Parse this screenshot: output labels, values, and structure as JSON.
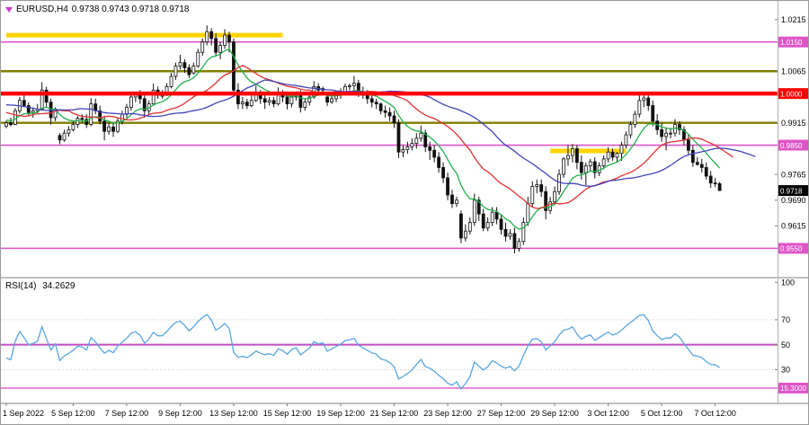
{
  "header": {
    "symbol": "EURUSD,H4",
    "ohlc": "0.9738 0.9743 0.9718 0.9718",
    "marker_color": "#c63bc6"
  },
  "rsi_header": {
    "label": "RSI(14)",
    "value": "34.2629"
  },
  "chart_data": {
    "type": "candlestick",
    "symbol": "EURUSD",
    "timeframe": "H4",
    "colors": {
      "background": "#ffffff",
      "candle_up": "#ffffff",
      "candle_down": "#111111",
      "candle_outline": "#111111",
      "frame": "#808080"
    },
    "price_axis": {
      "range_min": 0.947,
      "range_max": 1.0259,
      "ticks": [
        "1.0215",
        "1.0140",
        "1.0065",
        "0.9990",
        "0.9915",
        "0.9840",
        "0.9765",
        "0.9690",
        "0.9615",
        "0.9540"
      ]
    },
    "current_price": {
      "value": 0.9718,
      "label": "0.9718",
      "color": "#000000"
    },
    "hlines": [
      {
        "price": 1.015,
        "color": "#df55c8",
        "width": 1.6,
        "label": "1.0150",
        "badge": true
      },
      {
        "price": 1.0065,
        "color": "#7f7f00",
        "width": 2.4,
        "badge": false
      },
      {
        "price": 1.0,
        "color": "#ff0000",
        "width": 4.5,
        "label": "1.0000",
        "badge": true,
        "on_top": true
      },
      {
        "price": 0.9915,
        "color": "#7f7f00",
        "width": 2.4,
        "badge": false
      },
      {
        "price": 0.985,
        "color": "#df55c8",
        "width": 1.6,
        "label": "0.9850",
        "badge": true
      },
      {
        "price": 0.955,
        "color": "#df55c8",
        "width": 1.6,
        "label": "0.9550",
        "badge": true
      }
    ],
    "segments": [
      {
        "price": 1.017,
        "from_index": 0,
        "to_index": 62,
        "color": "#ffd400",
        "width": 5
      },
      {
        "price": 0.9833,
        "from_index": 122,
        "to_index": 139,
        "color": "#ffd400",
        "width": 5
      }
    ],
    "moving_averages": [
      {
        "name": "ma-fast",
        "period": 10,
        "shift": 0,
        "color": "#22b14c",
        "width": 1.3
      },
      {
        "name": "ma-mid",
        "period": 22,
        "shift": 3,
        "color": "#e03232",
        "width": 1.3
      },
      {
        "name": "ma-slow",
        "period": 40,
        "shift": 8,
        "color": "#4343bb",
        "width": 1.3
      }
    ],
    "time_labels": [
      {
        "text": "1 Sep 2022",
        "index": 0,
        "align": "left"
      },
      {
        "text": "5 Sep 12:00",
        "index": 15
      },
      {
        "text": "7 Sep 12:00",
        "index": 27
      },
      {
        "text": "9 Sep 12:00",
        "index": 39
      },
      {
        "text": "13 Sep 12:00",
        "index": 51
      },
      {
        "text": "15 Sep 12:00",
        "index": 63
      },
      {
        "text": "19 Sep 12:00",
        "index": 75
      },
      {
        "text": "21 Sep 12:00",
        "index": 87
      },
      {
        "text": "23 Sep 12:00",
        "index": 99
      },
      {
        "text": "27 Sep 12:00",
        "index": 111
      },
      {
        "text": "29 Sep 12:00",
        "index": 123
      },
      {
        "text": "3 Oct 12:00",
        "index": 135
      },
      {
        "text": "5 Oct 12:00",
        "index": 147
      },
      {
        "text": "7 Oct 12:00",
        "index": 159
      }
    ],
    "rsi": {
      "name": "RSI",
      "period": 14,
      "value_display": "34.2629",
      "color": "#58a6e0",
      "range": [
        3,
        103
      ],
      "ticks": [
        "100",
        "70",
        "50",
        "30"
      ],
      "levels": [
        {
          "value": 70,
          "color": "#c8c8c8",
          "style": "dotted",
          "width": 1
        },
        {
          "value": 50,
          "color": "#c24ec2",
          "style": "solid",
          "width": 2
        },
        {
          "value": 30,
          "color": "#c8c8c8",
          "style": "dotted",
          "width": 1
        }
      ],
      "hline": {
        "value": 15.3,
        "label": "15.3000",
        "color": "#df55c8"
      }
    },
    "warmup_closes": [
      1.004,
      1.0035,
      1.0028,
      1.002,
      1.0015,
      1.0022,
      1.003,
      1.0018,
      1.0005,
      0.9995,
      0.9985,
      0.9975,
      0.9968,
      0.996,
      0.9952,
      0.9945,
      0.9938,
      0.993,
      0.9925,
      0.9935,
      0.9945,
      0.9958,
      0.997,
      0.9982,
      0.999,
      0.9998,
      1.0005,
      0.9995,
      0.9985,
      0.9972,
      0.996,
      0.9948,
      0.9935,
      0.9922,
      0.991,
      0.99,
      0.9912,
      0.9925,
      0.9938,
      0.995,
      0.9962,
      0.9955,
      0.9945,
      0.9935,
      0.9925,
      0.9915,
      0.9908,
      0.9902
    ],
    "candles": [
      [
        0.9905,
        0.9921,
        0.9899,
        0.9915
      ],
      [
        0.9915,
        0.993,
        0.9905,
        0.991
      ],
      [
        0.991,
        0.9958,
        0.9908,
        0.995
      ],
      [
        0.995,
        0.999,
        0.9942,
        0.998
      ],
      [
        0.998,
        1.0,
        0.996,
        0.9965
      ],
      [
        0.9965,
        0.9975,
        0.9935,
        0.9945
      ],
      [
        0.9945,
        0.996,
        0.993,
        0.995
      ],
      [
        0.995,
        0.997,
        0.994,
        0.9955
      ],
      [
        0.9955,
        1.0033,
        0.995,
        1.001
      ],
      [
        1.001,
        1.002,
        0.996,
        0.9975
      ],
      [
        0.9975,
        0.9985,
        0.991,
        0.993
      ],
      [
        0.993,
        0.996,
        0.992,
        0.9955
      ],
      [
        0.9878,
        0.9885,
        0.9853,
        0.9865
      ],
      [
        0.9865,
        0.9895,
        0.986,
        0.9885
      ],
      [
        0.9885,
        0.9905,
        0.9875,
        0.9895
      ],
      [
        0.9895,
        0.992,
        0.989,
        0.991
      ],
      [
        0.991,
        0.9935,
        0.99,
        0.9928
      ],
      [
        0.9928,
        0.994,
        0.9915,
        0.9925
      ],
      [
        0.9925,
        0.994,
        0.99,
        0.991
      ],
      [
        0.991,
        0.9987,
        0.9905,
        0.997
      ],
      [
        0.997,
        0.9985,
        0.994,
        0.995
      ],
      [
        0.995,
        0.9965,
        0.991,
        0.992
      ],
      [
        0.992,
        0.9935,
        0.9864,
        0.989
      ],
      [
        0.989,
        0.9915,
        0.988,
        0.9903
      ],
      [
        0.9903,
        0.9915,
        0.9874,
        0.989
      ],
      [
        0.989,
        0.993,
        0.9885,
        0.992
      ],
      [
        0.992,
        0.995,
        0.991,
        0.994
      ],
      [
        0.994,
        0.997,
        0.993,
        0.996
      ],
      [
        0.996,
        1.0005,
        0.995,
        0.999
      ],
      [
        0.999,
        1.0,
        0.9975,
        0.9998
      ],
      [
        0.9998,
        1.001,
        0.997,
        0.9985
      ],
      [
        0.9985,
        0.9995,
        0.993,
        0.995
      ],
      [
        0.995,
        0.998,
        0.994,
        0.997
      ],
      [
        0.997,
        1.0029,
        0.9965,
        1.001
      ],
      [
        1.001,
        1.002,
        0.9985,
        0.9995
      ],
      [
        0.9995,
        1.001,
        0.9985,
        0.9995
      ],
      [
        0.9995,
        1.003,
        0.9993,
        1.002
      ],
      [
        1.002,
        1.006,
        1.0015,
        1.005
      ],
      [
        1.005,
        1.009,
        1.004,
        1.008
      ],
      [
        1.008,
        1.0113,
        1.007,
        1.009
      ],
      [
        1.009,
        1.01,
        1.006,
        1.0075
      ],
      [
        1.0075,
        1.0085,
        1.0045,
        1.0055
      ],
      [
        1.006,
        1.009,
        1.0055,
        1.008
      ],
      [
        1.008,
        1.013,
        1.0075,
        1.012
      ],
      [
        1.012,
        1.016,
        1.011,
        1.015
      ],
      [
        1.015,
        1.0198,
        1.014,
        1.018
      ],
      [
        1.018,
        1.019,
        1.014,
        1.016
      ],
      [
        1.016,
        1.0175,
        1.011,
        1.012
      ],
      [
        1.012,
        1.015,
        1.01,
        1.014
      ],
      [
        1.014,
        1.0187,
        1.013,
        1.017
      ],
      [
        1.017,
        1.018,
        1.012,
        1.015
      ],
      [
        1.015,
        1.016,
        0.999,
        1.001
      ],
      [
        1.001,
        1.003,
        0.9955,
        0.997
      ],
      [
        0.997,
        0.999,
        0.9955,
        0.9975
      ],
      [
        0.9975,
        0.9985,
        0.9955,
        0.9965
      ],
      [
        0.9965,
        0.9995,
        0.996,
        0.998
      ],
      [
        0.998,
        1.0023,
        0.9975,
        1.0
      ],
      [
        1.0,
        1.001,
        0.997,
        0.9985
      ],
      [
        0.9985,
        0.9995,
        0.9955,
        0.9975
      ],
      [
        0.9975,
        0.999,
        0.9965,
        0.998
      ],
      [
        0.998,
        0.999,
        0.996,
        0.997
      ],
      [
        0.997,
        1.0018,
        0.9965,
        1.0
      ],
      [
        1.0,
        1.001,
        0.9975,
        0.999
      ],
      [
        0.999,
        1.0005,
        0.9954,
        0.997
      ],
      [
        0.997,
        0.9995,
        0.996,
        0.999
      ],
      [
        0.999,
        1.0005,
        0.998,
        0.9999
      ],
      [
        0.9999,
        1.001,
        0.9945,
        0.996
      ],
      [
        0.996,
        0.9985,
        0.995,
        0.9975
      ],
      [
        0.9975,
        1.0,
        0.9965,
        0.999
      ],
      [
        0.999,
        1.0036,
        0.9985,
        1.002
      ],
      [
        1.002,
        1.003,
        1.0,
        1.001
      ],
      [
        1.001,
        1.002,
        0.9995,
        1.0015
      ],
      [
        0.999,
        1.0,
        0.9964,
        0.9975
      ],
      [
        0.9975,
        0.9995,
        0.997,
        0.9985
      ],
      [
        0.9985,
        1.0005,
        0.9975,
        0.9995
      ],
      [
        0.9995,
        1.0015,
        0.9985,
        1.0005
      ],
      [
        1.0005,
        1.0029,
        0.9995,
        1.002
      ],
      [
        1.002,
        1.0029,
        1.001,
        1.0023
      ],
      [
        1.0023,
        1.0051,
        1.001,
        1.003
      ],
      [
        1.003,
        1.004,
        0.999,
        1.0005
      ],
      [
        1.0005,
        1.002,
        0.9985,
        0.9995
      ],
      [
        0.9995,
        1.001,
        0.997,
        0.9985
      ],
      [
        0.9985,
        1.0,
        0.996,
        0.9975
      ],
      [
        0.9975,
        0.9985,
        0.9955,
        0.997
      ],
      [
        0.997,
        0.9974,
        0.994,
        0.995
      ],
      [
        0.995,
        0.9965,
        0.993,
        0.9945
      ],
      [
        0.9945,
        0.996,
        0.992,
        0.9935
      ],
      [
        0.9935,
        0.995,
        0.99,
        0.9915
      ],
      [
        0.9915,
        0.9925,
        0.9813,
        0.983
      ],
      [
        0.983,
        0.985,
        0.9815,
        0.9837
      ],
      [
        0.9837,
        0.986,
        0.9825,
        0.9845
      ],
      [
        0.9845,
        0.987,
        0.9835,
        0.9855
      ],
      [
        0.9855,
        0.9885,
        0.984,
        0.987
      ],
      [
        0.987,
        0.9907,
        0.986,
        0.9885
      ],
      [
        0.9885,
        0.9895,
        0.983,
        0.9845
      ],
      [
        0.9845,
        0.986,
        0.9807,
        0.9835
      ],
      [
        0.9835,
        0.9851,
        0.98,
        0.9815
      ],
      [
        0.9815,
        0.983,
        0.977,
        0.9785
      ],
      [
        0.9785,
        0.98,
        0.974,
        0.9755
      ],
      [
        0.9755,
        0.977,
        0.969,
        0.9705
      ],
      [
        0.9705,
        0.972,
        0.9667,
        0.968
      ],
      [
        0.968,
        0.97,
        0.967,
        0.969
      ],
      [
        0.965,
        0.966,
        0.9565,
        0.958
      ],
      [
        0.958,
        0.962,
        0.957,
        0.96
      ],
      [
        0.96,
        0.964,
        0.959,
        0.9625
      ],
      [
        0.9625,
        0.9709,
        0.9615,
        0.969
      ],
      [
        0.969,
        0.97,
        0.963,
        0.965
      ],
      [
        0.965,
        0.9665,
        0.96,
        0.9609
      ],
      [
        0.9609,
        0.964,
        0.96,
        0.9625
      ],
      [
        0.9625,
        0.967,
        0.9615,
        0.9655
      ],
      [
        0.9655,
        0.967,
        0.962,
        0.9635
      ],
      [
        0.9635,
        0.965,
        0.959,
        0.9605
      ],
      [
        0.9605,
        0.9625,
        0.957,
        0.9585
      ],
      [
        0.9585,
        0.9605,
        0.9575,
        0.9593
      ],
      [
        0.9593,
        0.961,
        0.9535,
        0.955
      ],
      [
        0.955,
        0.958,
        0.954,
        0.957
      ],
      [
        0.957,
        0.964,
        0.956,
        0.9625
      ],
      [
        0.9625,
        0.97,
        0.9615,
        0.968
      ],
      [
        0.968,
        0.9745,
        0.967,
        0.973
      ],
      [
        0.973,
        0.975,
        0.971,
        0.9735
      ],
      [
        0.9735,
        0.975,
        0.97,
        0.9715
      ],
      [
        0.9715,
        0.973,
        0.9634,
        0.966
      ],
      [
        0.966,
        0.97,
        0.965,
        0.9685
      ],
      [
        0.9685,
        0.973,
        0.9675,
        0.9715
      ],
      [
        0.9715,
        0.978,
        0.9705,
        0.9765
      ],
      [
        0.9765,
        0.9815,
        0.9755,
        0.981
      ],
      [
        0.981,
        0.985,
        0.979,
        0.982
      ],
      [
        0.982,
        0.9853,
        0.98,
        0.984
      ],
      [
        0.984,
        0.985,
        0.978,
        0.98
      ],
      [
        0.98,
        0.982,
        0.975,
        0.977
      ],
      [
        0.977,
        0.98,
        0.9733,
        0.979
      ],
      [
        0.979,
        0.981,
        0.9775,
        0.9802
      ],
      [
        0.9802,
        0.9815,
        0.9753,
        0.977
      ],
      [
        0.977,
        0.98,
        0.976,
        0.979
      ],
      [
        0.979,
        0.982,
        0.978,
        0.981
      ],
      [
        0.981,
        0.9844,
        0.98,
        0.983
      ],
      [
        0.983,
        0.984,
        0.9805,
        0.9815
      ],
      [
        0.9815,
        0.983,
        0.98,
        0.9826
      ],
      [
        0.9826,
        0.986,
        0.9804,
        0.985
      ],
      [
        0.985,
        0.989,
        0.984,
        0.988
      ],
      [
        0.988,
        0.992,
        0.987,
        0.991
      ],
      [
        0.991,
        0.995,
        0.99,
        0.994
      ],
      [
        0.994,
        0.9999,
        0.993,
        0.998
      ],
      [
        0.998,
        0.9995,
        0.996,
        0.9987
      ],
      [
        0.9987,
        1.0,
        0.995,
        0.9965
      ],
      [
        0.9965,
        0.998,
        0.9905,
        0.992
      ],
      [
        0.992,
        0.994,
        0.988,
        0.9895
      ],
      [
        0.9895,
        0.9915,
        0.986,
        0.9875
      ],
      [
        0.9875,
        0.99,
        0.9835,
        0.9885
      ],
      [
        0.9885,
        0.99,
        0.987,
        0.9885
      ],
      [
        0.9885,
        0.9926,
        0.9875,
        0.991
      ],
      [
        0.991,
        0.992,
        0.988,
        0.9895
      ],
      [
        0.9895,
        0.9905,
        0.985,
        0.9865
      ],
      [
        0.9865,
        0.988,
        0.982,
        0.9835
      ],
      [
        0.9835,
        0.985,
        0.9787,
        0.98
      ],
      [
        0.98,
        0.9815,
        0.979,
        0.9794
      ],
      [
        0.9794,
        0.981,
        0.977,
        0.9785
      ],
      [
        0.9785,
        0.98,
        0.975,
        0.976
      ],
      [
        0.976,
        0.9775,
        0.9726,
        0.974
      ],
      [
        0.974,
        0.9755,
        0.9728,
        0.9738
      ],
      [
        0.9738,
        0.9743,
        0.9718,
        0.9718
      ]
    ]
  }
}
